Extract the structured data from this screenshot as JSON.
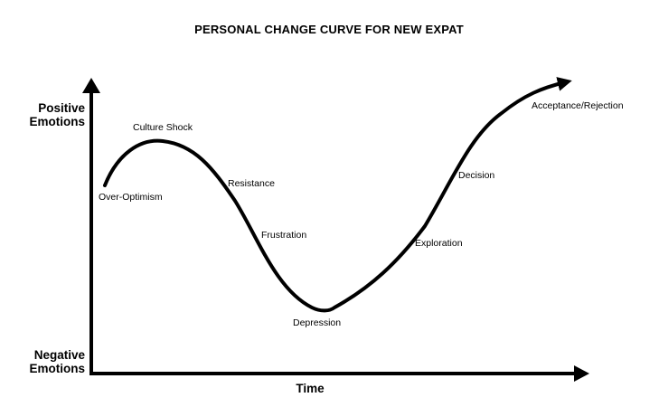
{
  "title": "PERSONAL CHANGE CURVE FOR NEW EXPAT",
  "axes": {
    "y_top": [
      "Positive",
      "Emotions"
    ],
    "y_bottom": [
      "Negative",
      "Emotions"
    ],
    "x": "Time"
  },
  "stages": [
    {
      "label": "Over-Optimism"
    },
    {
      "label": "Culture Shock"
    },
    {
      "label": "Resistance"
    },
    {
      "label": "Frustration"
    },
    {
      "label": "Depression"
    },
    {
      "label": "Exploration"
    },
    {
      "label": "Decision"
    },
    {
      "label": "Acceptance/Rejection"
    }
  ],
  "colors": {
    "line": "#000000",
    "background": "#ffffff"
  }
}
